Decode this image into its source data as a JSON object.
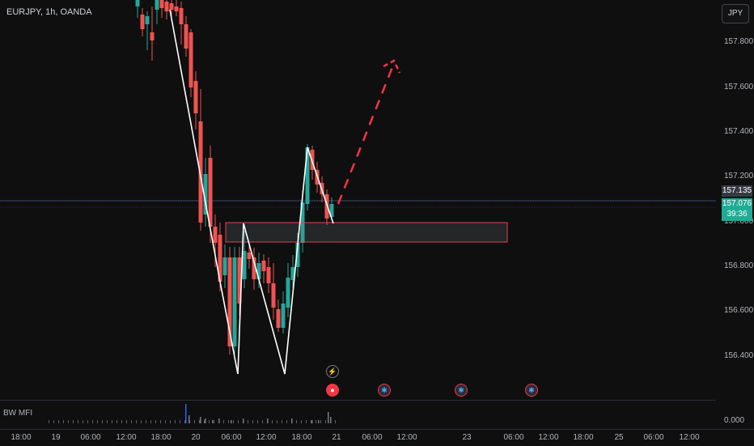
{
  "header": {
    "symbol_title": "EURJPY, 1h, OANDA"
  },
  "currency_button": "JPY",
  "price_axis": {
    "labels": [
      "157.800",
      "157.600",
      "157.400",
      "157.200",
      "157.000",
      "156.800",
      "156.600",
      "156.400"
    ],
    "last_price": "157.135",
    "current_price": "157.076",
    "countdown": "39:36"
  },
  "time_axis": {
    "labels": [
      "18:00",
      "19",
      "06:00",
      "12:00",
      "18:00",
      "20",
      "06:00",
      "12:00",
      "18:00",
      "21",
      "06:00",
      "12:00",
      "23",
      "06:00",
      "12:00",
      "18:00",
      "25",
      "06:00",
      "12:00"
    ]
  },
  "indicator": {
    "name": "BW MFI",
    "value": "0.000"
  },
  "colors": {
    "bull": "#26a69a",
    "bear": "#ef5350",
    "zone_border": "#e0414b",
    "projection": "#f23645"
  },
  "events": [
    {
      "name": "flash-icon",
      "glyph": "⚡"
    },
    {
      "name": "record-dot-icon",
      "glyph": "●"
    },
    {
      "name": "economic-event-icon",
      "glyph": "✱"
    },
    {
      "name": "economic-event-icon",
      "glyph": "✱"
    },
    {
      "name": "economic-event-icon",
      "glyph": "✱"
    }
  ]
}
